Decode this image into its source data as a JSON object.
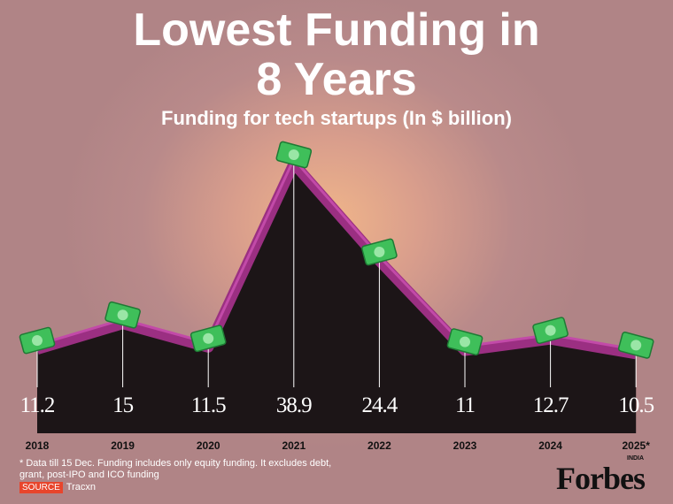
{
  "chart_data": {
    "type": "area",
    "title": "Lowest Funding in 8 Years",
    "subtitle": "Funding for tech startups (In $ billion)",
    "categories": [
      "2018",
      "2019",
      "2020",
      "2021",
      "2022",
      "2023",
      "2024",
      "2025*"
    ],
    "values": [
      11.2,
      15,
      11.5,
      38.9,
      24.4,
      11,
      12.7,
      10.5
    ],
    "color": "#9b2f82",
    "area_color": "#1c1517",
    "footnote": "* Data till 15 Dec. Funding includes only equity funding. It excludes debt, grant, post-IPO and ICO funding",
    "source_label": "SOURCE",
    "source": "Tracxn"
  },
  "logo": {
    "name": "Forbes",
    "edition": "INDIA"
  }
}
